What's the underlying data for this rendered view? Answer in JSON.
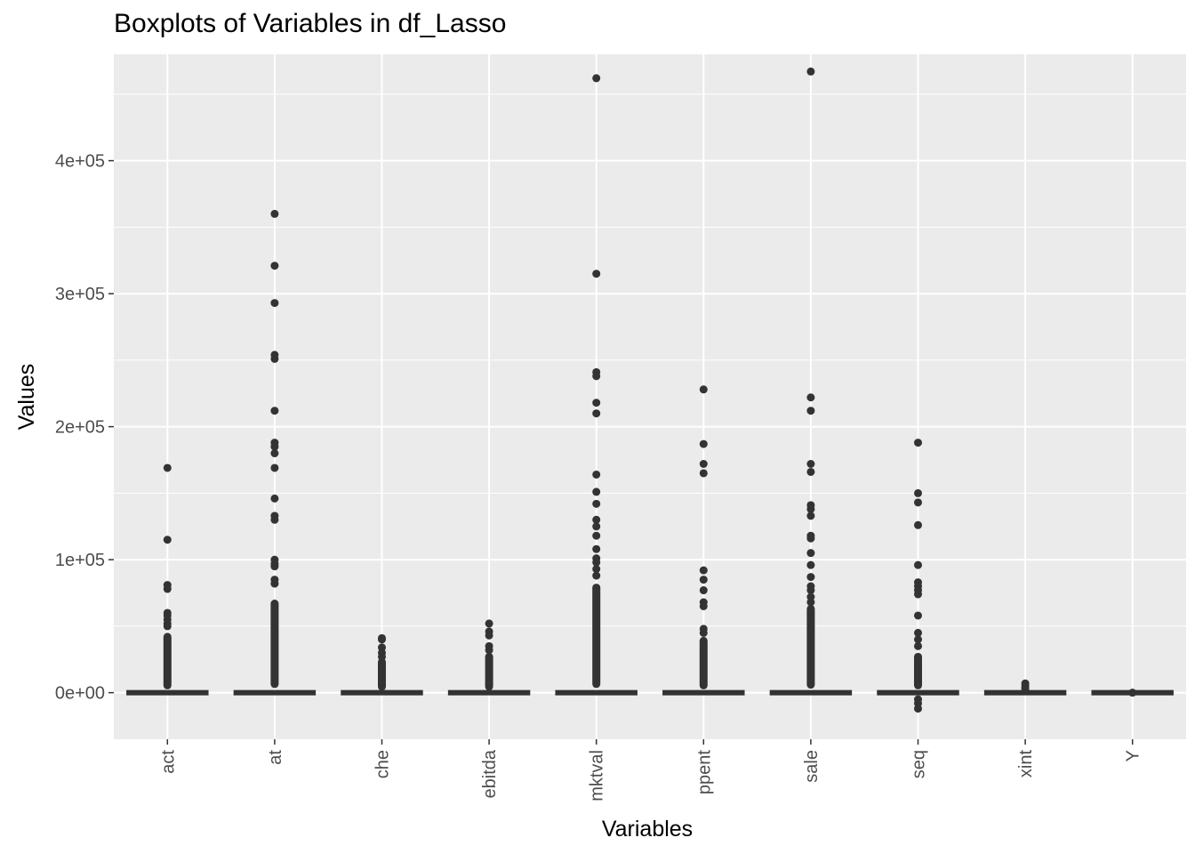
{
  "chart_data": {
    "type": "boxplot",
    "title": "Boxplots of Variables in df_Lasso",
    "xlabel": "Variables",
    "ylabel": "Values",
    "ylim": [
      -35000,
      480000
    ],
    "yticks": [
      0,
      100000,
      200000,
      300000,
      400000
    ],
    "ytick_labels": [
      "0e+00",
      "1e+05",
      "2e+05",
      "3e+05",
      "4e+05"
    ],
    "grid": true,
    "categories": [
      "act",
      "at",
      "che",
      "ebitda",
      "mktval",
      "ppent",
      "sale",
      "seq",
      "xint",
      "Y"
    ],
    "boxes": [
      {
        "name": "act",
        "q1": 0,
        "median": 0,
        "q3": 1000,
        "outliers": [
          169000,
          115000,
          81000,
          78000,
          60000,
          58000,
          55000,
          52000,
          50000
        ],
        "dense_range": [
          2500,
          45000
        ]
      },
      {
        "name": "at",
        "q1": 0,
        "median": 0,
        "q3": 1500,
        "outliers": [
          360000,
          321000,
          293000,
          254000,
          251000,
          212000,
          188000,
          185000,
          180000,
          169000,
          146000,
          133000,
          130000,
          100000,
          97000,
          95000,
          85000,
          82000
        ],
        "dense_range": [
          3500,
          70000
        ]
      },
      {
        "name": "che",
        "q1": 0,
        "median": 0,
        "q3": 500,
        "outliers": [
          41000,
          40000,
          34000,
          30000,
          27000
        ],
        "dense_range": [
          1500,
          26000
        ]
      },
      {
        "name": "ebitda",
        "q1": 0,
        "median": 0,
        "q3": 500,
        "outliers": [
          52000,
          46000,
          43000,
          35000,
          32000
        ],
        "dense_range": [
          1500,
          30000
        ]
      },
      {
        "name": "mktval",
        "q1": 0,
        "median": 0,
        "q3": 1500,
        "outliers": [
          462000,
          315000,
          241000,
          238000,
          218000,
          210000,
          164000,
          151000,
          142000,
          130000,
          125000,
          118000,
          108000,
          101000,
          98000,
          93000,
          88000
        ],
        "dense_range": [
          3500,
          82000
        ]
      },
      {
        "name": "ppent",
        "q1": 0,
        "median": 0,
        "q3": 800,
        "outliers": [
          228000,
          187000,
          172000,
          165000,
          92000,
          85000,
          77000,
          68000,
          65000,
          48000,
          45000
        ],
        "dense_range": [
          2500,
          42000
        ]
      },
      {
        "name": "sale",
        "q1": 0,
        "median": 0,
        "q3": 1200,
        "outliers": [
          467000,
          222000,
          212000,
          172000,
          166000,
          141000,
          138000,
          133000,
          118000,
          116000,
          105000,
          96000,
          87000,
          80000,
          77000,
          72000,
          68000
        ],
        "dense_range": [
          3000,
          66000
        ]
      },
      {
        "name": "seq",
        "q1": 0,
        "median": 0,
        "q3": 800,
        "outliers": [
          188000,
          150000,
          143000,
          126000,
          96000,
          83000,
          80000,
          77000,
          74000,
          58000,
          45000,
          40000,
          35000,
          -5000,
          -8000,
          -12000
        ],
        "dense_range": [
          2500,
          30000
        ]
      },
      {
        "name": "xint",
        "q1": 0,
        "median": 0,
        "q3": 100,
        "outliers": [
          7000,
          5000,
          3500
        ],
        "dense_range": [
          800,
          5500
        ]
      },
      {
        "name": "Y",
        "q1": 0,
        "median": 0,
        "q3": 0,
        "outliers": [
          0
        ],
        "dense_range": [
          0,
          0
        ]
      }
    ]
  }
}
